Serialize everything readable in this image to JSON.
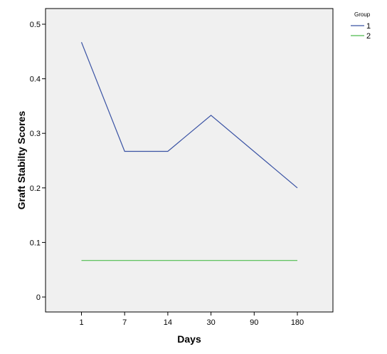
{
  "chart_data": {
    "type": "line",
    "xlabel": "Days",
    "ylabel": "Graft Stabilty Scores",
    "categories": [
      "1",
      "7",
      "14",
      "30",
      "90",
      "180"
    ],
    "ylim": [
      0,
      0.5
    ],
    "yticks": [
      "0",
      "0.1",
      "0.2",
      "0.3",
      "0.4",
      "0.5"
    ],
    "grid": false,
    "plot_background": "#f0f0f0",
    "legend": {
      "title": "Group",
      "placement": "top-right-outside"
    },
    "series": [
      {
        "name": "1",
        "color": "#3a53a4",
        "x": [
          "1",
          "7",
          "14",
          "30",
          "180"
        ],
        "values": [
          0.467,
          0.267,
          0.267,
          0.333,
          0.2
        ]
      },
      {
        "name": "2",
        "color": "#4dbb4d",
        "x": [
          "1",
          "7",
          "14",
          "30",
          "180"
        ],
        "values": [
          0.067,
          0.067,
          0.067,
          0.067,
          0.067
        ]
      }
    ]
  }
}
